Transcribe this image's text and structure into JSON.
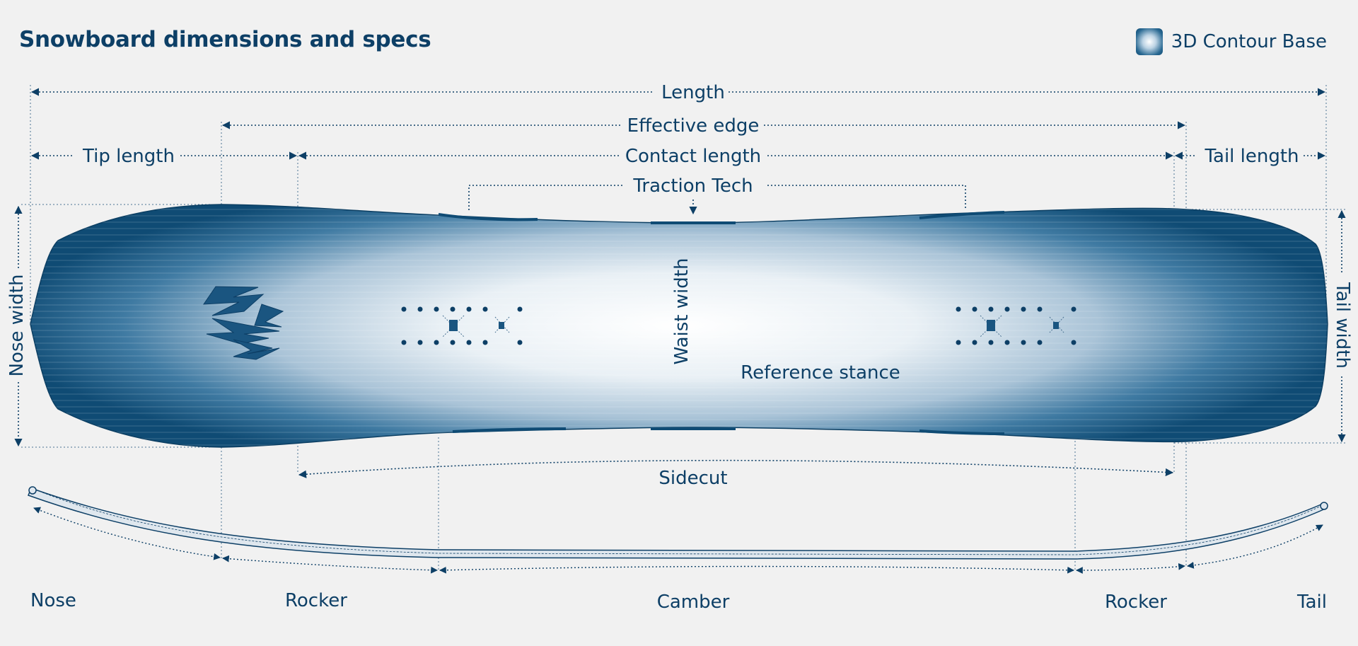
{
  "title": "Snowboard dimensions and specs",
  "legend": {
    "label": "3D Contour Base",
    "icon": "gradient-swatch-icon"
  },
  "labels": {
    "length": "Length",
    "effective_edge": "Effective edge",
    "tip_length": "Tip length",
    "contact_length": "Contact length",
    "tail_length": "Tail length",
    "traction_tech": "Traction Tech",
    "nose_width": "Nose width",
    "waist_width": "Waist width",
    "tail_width": "Tail width",
    "reference_stance": "Reference stance",
    "sidecut": "Sidecut"
  },
  "profile": {
    "nose": "Nose",
    "rocker_left": "Rocker",
    "camber": "Camber",
    "rocker_right": "Rocker",
    "tail": "Tail"
  },
  "colors": {
    "primary": "#0d3f66",
    "board_edge": "#0f4b74",
    "background": "#f1f1f1"
  }
}
